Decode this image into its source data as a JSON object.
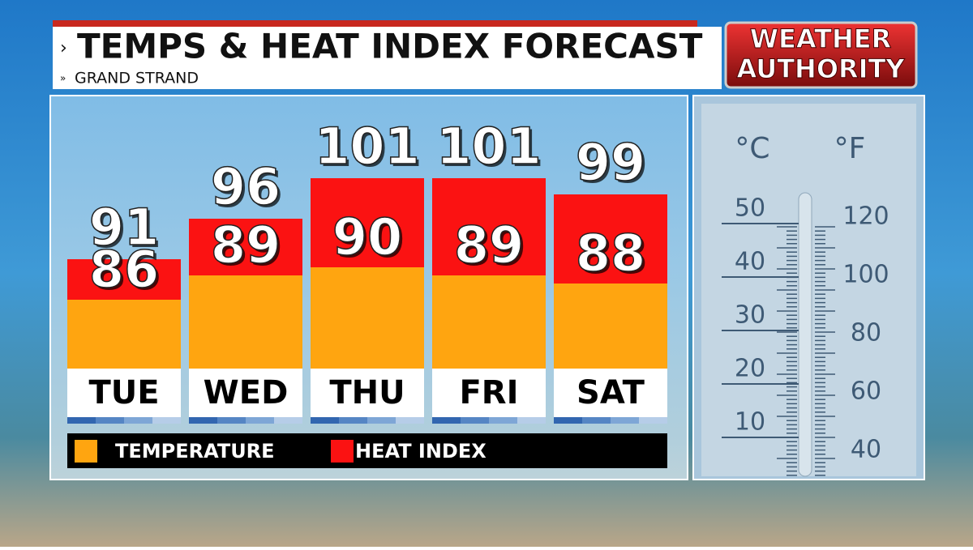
{
  "chart_data": {
    "type": "bar",
    "title": "TEMPS & HEAT INDEX FORECAST",
    "subtitle": "GRAND STRAND",
    "categories": [
      "TUE",
      "WED",
      "THU",
      "FRI",
      "SAT"
    ],
    "series": [
      {
        "name": "TEMPERATURE",
        "color": "#ffa510",
        "values": [
          86,
          89,
          90,
          89,
          88
        ]
      },
      {
        "name": "HEAT INDEX",
        "color": "#fb1212",
        "values": [
          91,
          96,
          101,
          101,
          99
        ]
      }
    ]
  },
  "logo": [
    "WEATHER",
    "AUTHORITY"
  ],
  "thermometer": {
    "celsius_unit": "°C",
    "fahrenheit_unit": "°F",
    "celsius": [
      "50",
      "40",
      "30",
      "20",
      "10"
    ],
    "fahrenheit": [
      "120",
      "100",
      "80",
      "60",
      "40"
    ]
  }
}
